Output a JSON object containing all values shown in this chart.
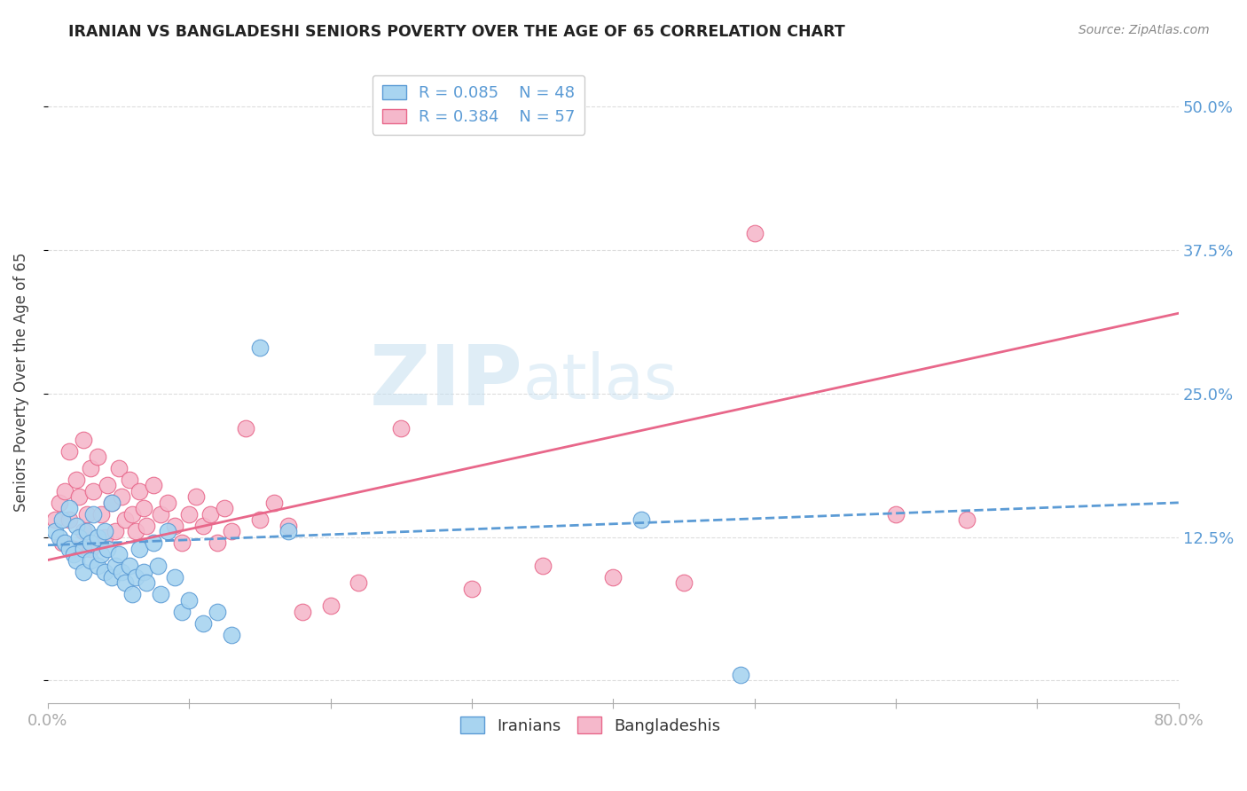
{
  "title": "IRANIAN VS BANGLADESHI SENIORS POVERTY OVER THE AGE OF 65 CORRELATION CHART",
  "source": "Source: ZipAtlas.com",
  "ylabel": "Seniors Poverty Over the Age of 65",
  "xlim": [
    0.0,
    0.8
  ],
  "ylim": [
    -0.02,
    0.54
  ],
  "yticks": [
    0.0,
    0.125,
    0.25,
    0.375,
    0.5
  ],
  "ytick_labels": [
    "",
    "12.5%",
    "25.0%",
    "37.5%",
    "50.0%"
  ],
  "xticks": [
    0.0,
    0.1,
    0.2,
    0.3,
    0.4,
    0.5,
    0.6,
    0.7,
    0.8
  ],
  "xtick_labels": [
    "0.0%",
    "",
    "",
    "",
    "",
    "",
    "",
    "",
    "80.0%"
  ],
  "iranian_color": "#a8d4f0",
  "bangladeshi_color": "#f5b8cb",
  "iranian_line_color": "#5b9bd5",
  "bangladeshi_line_color": "#e8678a",
  "R_iranian": 0.085,
  "N_iranian": 48,
  "R_bangladeshi": 0.384,
  "N_bangladeshi": 57,
  "legend_labels": [
    "Iranians",
    "Bangladeshis"
  ],
  "watermark_zip": "ZIP",
  "watermark_atlas": "atlas",
  "iranian_x": [
    0.005,
    0.008,
    0.01,
    0.012,
    0.015,
    0.015,
    0.018,
    0.02,
    0.02,
    0.022,
    0.025,
    0.025,
    0.028,
    0.03,
    0.03,
    0.032,
    0.035,
    0.035,
    0.038,
    0.04,
    0.04,
    0.042,
    0.045,
    0.045,
    0.048,
    0.05,
    0.052,
    0.055,
    0.058,
    0.06,
    0.062,
    0.065,
    0.068,
    0.07,
    0.075,
    0.078,
    0.08,
    0.085,
    0.09,
    0.095,
    0.1,
    0.11,
    0.12,
    0.13,
    0.15,
    0.17,
    0.42,
    0.49
  ],
  "iranian_y": [
    0.13,
    0.125,
    0.14,
    0.12,
    0.115,
    0.15,
    0.11,
    0.105,
    0.135,
    0.125,
    0.095,
    0.115,
    0.13,
    0.105,
    0.12,
    0.145,
    0.1,
    0.125,
    0.11,
    0.095,
    0.13,
    0.115,
    0.09,
    0.155,
    0.1,
    0.11,
    0.095,
    0.085,
    0.1,
    0.075,
    0.09,
    0.115,
    0.095,
    0.085,
    0.12,
    0.1,
    0.075,
    0.13,
    0.09,
    0.06,
    0.07,
    0.05,
    0.06,
    0.04,
    0.29,
    0.13,
    0.14,
    0.005
  ],
  "bangladeshi_x": [
    0.005,
    0.008,
    0.01,
    0.012,
    0.015,
    0.015,
    0.018,
    0.02,
    0.022,
    0.025,
    0.025,
    0.028,
    0.03,
    0.03,
    0.032,
    0.035,
    0.038,
    0.04,
    0.042,
    0.045,
    0.048,
    0.05,
    0.052,
    0.055,
    0.058,
    0.06,
    0.062,
    0.065,
    0.068,
    0.07,
    0.075,
    0.08,
    0.085,
    0.09,
    0.095,
    0.1,
    0.105,
    0.11,
    0.115,
    0.12,
    0.125,
    0.13,
    0.14,
    0.15,
    0.16,
    0.17,
    0.18,
    0.2,
    0.22,
    0.25,
    0.3,
    0.35,
    0.4,
    0.45,
    0.5,
    0.6,
    0.65
  ],
  "bangladeshi_y": [
    0.14,
    0.155,
    0.12,
    0.165,
    0.14,
    0.2,
    0.115,
    0.175,
    0.16,
    0.13,
    0.21,
    0.145,
    0.115,
    0.185,
    0.165,
    0.195,
    0.145,
    0.125,
    0.17,
    0.155,
    0.13,
    0.185,
    0.16,
    0.14,
    0.175,
    0.145,
    0.13,
    0.165,
    0.15,
    0.135,
    0.17,
    0.145,
    0.155,
    0.135,
    0.12,
    0.145,
    0.16,
    0.135,
    0.145,
    0.12,
    0.15,
    0.13,
    0.22,
    0.14,
    0.155,
    0.135,
    0.06,
    0.065,
    0.085,
    0.22,
    0.08,
    0.1,
    0.09,
    0.085,
    0.39,
    0.145,
    0.14
  ],
  "iran_trend_x": [
    0.0,
    0.8
  ],
  "iran_trend_y": [
    0.118,
    0.155
  ],
  "bang_trend_x": [
    0.0,
    0.8
  ],
  "bang_trend_y": [
    0.105,
    0.32
  ]
}
